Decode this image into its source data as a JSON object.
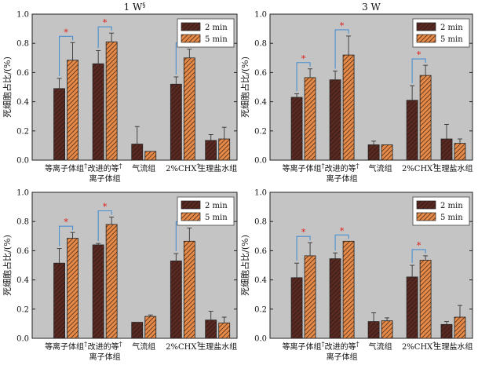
{
  "colors": {
    "panel_bg": "#c4c4c4",
    "bar_2min_fill": "#5a2a22",
    "bar_2min_stripe": "#2a1814",
    "bar_5min_fill": "#e58a48",
    "bar_5min_stripe": "#3a1e10",
    "bracket": "#4a8fd0",
    "star": "#e0201f"
  },
  "chart_data": [
    {
      "type": "bar",
      "title": "1 W",
      "title_mark": "§",
      "ylabel": "死细胞占比/(%)",
      "ylim": [
        0,
        1.0
      ],
      "yticks": [
        "0.0",
        "0.2",
        "0.4",
        "0.6",
        "0.8",
        "1.0"
      ],
      "categories": [
        "等离子体组",
        "改进的等离子体组",
        "气流组",
        "2%CHX",
        "生理盐水组"
      ],
      "category_lines": [
        [
          "等离子体组"
        ],
        [
          "改进的等",
          "离子体组"
        ],
        [
          "气流组"
        ],
        [
          "2%CHX"
        ],
        [
          "生理盐水组"
        ]
      ],
      "category_marks": [
        "†",
        "†",
        "",
        "†",
        ""
      ],
      "series": [
        {
          "name": "2 min",
          "values": [
            0.49,
            0.66,
            0.11,
            0.52,
            0.135
          ],
          "errors": [
            0.07,
            0.09,
            0.12,
            0.05,
            0.04
          ]
        },
        {
          "name": "5 min",
          "values": [
            0.685,
            0.81,
            0.06,
            0.7,
            0.145
          ],
          "errors": [
            0.12,
            0.06,
            0.0,
            0.06,
            0.08
          ]
        }
      ],
      "significance": [
        {
          "category": 0,
          "label": "*"
        },
        {
          "category": 1,
          "label": "*"
        },
        {
          "category": 3,
          "label": "*"
        }
      ]
    },
    {
      "type": "bar",
      "title": "3 W",
      "title_mark": "",
      "ylabel": "死细胞占比/(%)",
      "ylim": [
        0,
        1.0
      ],
      "yticks": [
        "0.0",
        "0.2",
        "0.4",
        "0.6",
        "0.8",
        "1.0"
      ],
      "categories": [
        "等离子体组",
        "改进的等离子体组",
        "气流组",
        "2%CHX",
        "生理盐水组"
      ],
      "category_lines": [
        [
          "等离子体组"
        ],
        [
          "改进的等",
          "离子体组"
        ],
        [
          "气流组"
        ],
        [
          "2%CHX"
        ],
        [
          "生理盐水组"
        ]
      ],
      "category_marks": [
        "†",
        "†",
        "",
        "†",
        ""
      ],
      "series": [
        {
          "name": "2 min",
          "values": [
            0.43,
            0.55,
            0.105,
            0.41,
            0.145
          ],
          "errors": [
            0.025,
            0.06,
            0.025,
            0.1,
            0.1
          ]
        },
        {
          "name": "5 min",
          "values": [
            0.565,
            0.72,
            0.105,
            0.58,
            0.115
          ],
          "errors": [
            0.06,
            0.13,
            0.0,
            0.07,
            0.03
          ]
        }
      ],
      "significance": [
        {
          "category": 0,
          "label": "*"
        },
        {
          "category": 1,
          "label": "*"
        },
        {
          "category": 3,
          "label": "*"
        }
      ]
    },
    {
      "type": "bar",
      "title": "",
      "title_mark": "",
      "ylabel": "死细胞占比/(%)",
      "ylim": [
        0,
        1.0
      ],
      "yticks": [
        "0.0",
        "0.2",
        "0.4",
        "0.6",
        "0.8",
        "1.0"
      ],
      "categories": [
        "等离子体组",
        "改进的等离子体组",
        "气流组",
        "2%CHX",
        "生理盐水组"
      ],
      "category_lines": [
        [
          "等离子体组"
        ],
        [
          "改进的等",
          "离子体组"
        ],
        [
          "气流组"
        ],
        [
          "2%CHX"
        ],
        [
          "生理盐水组"
        ]
      ],
      "category_marks": [
        "†",
        "†",
        "",
        "†",
        ""
      ],
      "series": [
        {
          "name": "2 min",
          "values": [
            0.515,
            0.64,
            0.11,
            0.53,
            0.125
          ],
          "errors": [
            0.1,
            0.01,
            0.0,
            0.05,
            0.06
          ]
        },
        {
          "name": "5 min",
          "values": [
            0.685,
            0.78,
            0.15,
            0.665,
            0.105
          ],
          "errors": [
            0.04,
            0.05,
            0.01,
            0.09,
            0.04
          ]
        }
      ],
      "significance": [
        {
          "category": 0,
          "label": "*"
        },
        {
          "category": 1,
          "label": "*"
        },
        {
          "category": 3,
          "label": "*"
        }
      ]
    },
    {
      "type": "bar",
      "title": "",
      "title_mark": "",
      "ylabel": "死细胞占比/(%)",
      "ylim": [
        0,
        1.0
      ],
      "yticks": [
        "0.0",
        "0.2",
        "0.4",
        "0.6",
        "0.8",
        "1.0"
      ],
      "categories": [
        "等离子体组",
        "改进的等离子体组",
        "气流组",
        "2%CHX",
        "生理盐水组"
      ],
      "category_lines": [
        [
          "等离子体组"
        ],
        [
          "改进的等",
          "离子体组"
        ],
        [
          "气流组"
        ],
        [
          "2%CHX"
        ],
        [
          "生理盐水组"
        ]
      ],
      "category_marks": [
        "†",
        "†",
        "",
        "†",
        ""
      ],
      "series": [
        {
          "name": "2 min",
          "values": [
            0.415,
            0.545,
            0.115,
            0.42,
            0.095
          ],
          "errors": [
            0.1,
            0.04,
            0.06,
            0.08,
            0.02
          ]
        },
        {
          "name": "5 min",
          "values": [
            0.565,
            0.665,
            0.12,
            0.535,
            0.145
          ],
          "errors": [
            0.09,
            0.0,
            0.02,
            0.03,
            0.08
          ]
        }
      ],
      "significance": [
        {
          "category": 0,
          "label": "*"
        },
        {
          "category": 1,
          "label": "*"
        },
        {
          "category": 3,
          "label": "*"
        }
      ]
    }
  ]
}
